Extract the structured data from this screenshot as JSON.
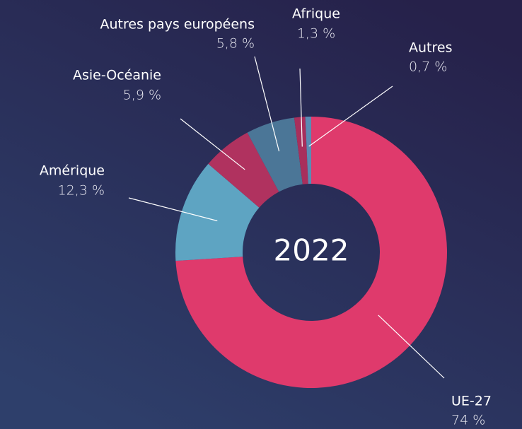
{
  "chart_data": {
    "type": "donut",
    "center_label": "2022",
    "categories": [
      "UE-27",
      "Amérique",
      "Asie-Océanie",
      "Autres pays européens",
      "Afrique",
      "Autres"
    ],
    "values": [
      74,
      12.3,
      5.9,
      5.8,
      1.3,
      0.7
    ],
    "value_labels": [
      "74 %",
      "12,3 %",
      "5,9 %",
      "5,8 %",
      "1,3 %",
      "0,7 %"
    ],
    "colors": [
      "#df3a6c",
      "#5ea4c2",
      "#b0325f",
      "#4b7697",
      "#a82f5c",
      "#5a8bb3"
    ]
  }
}
